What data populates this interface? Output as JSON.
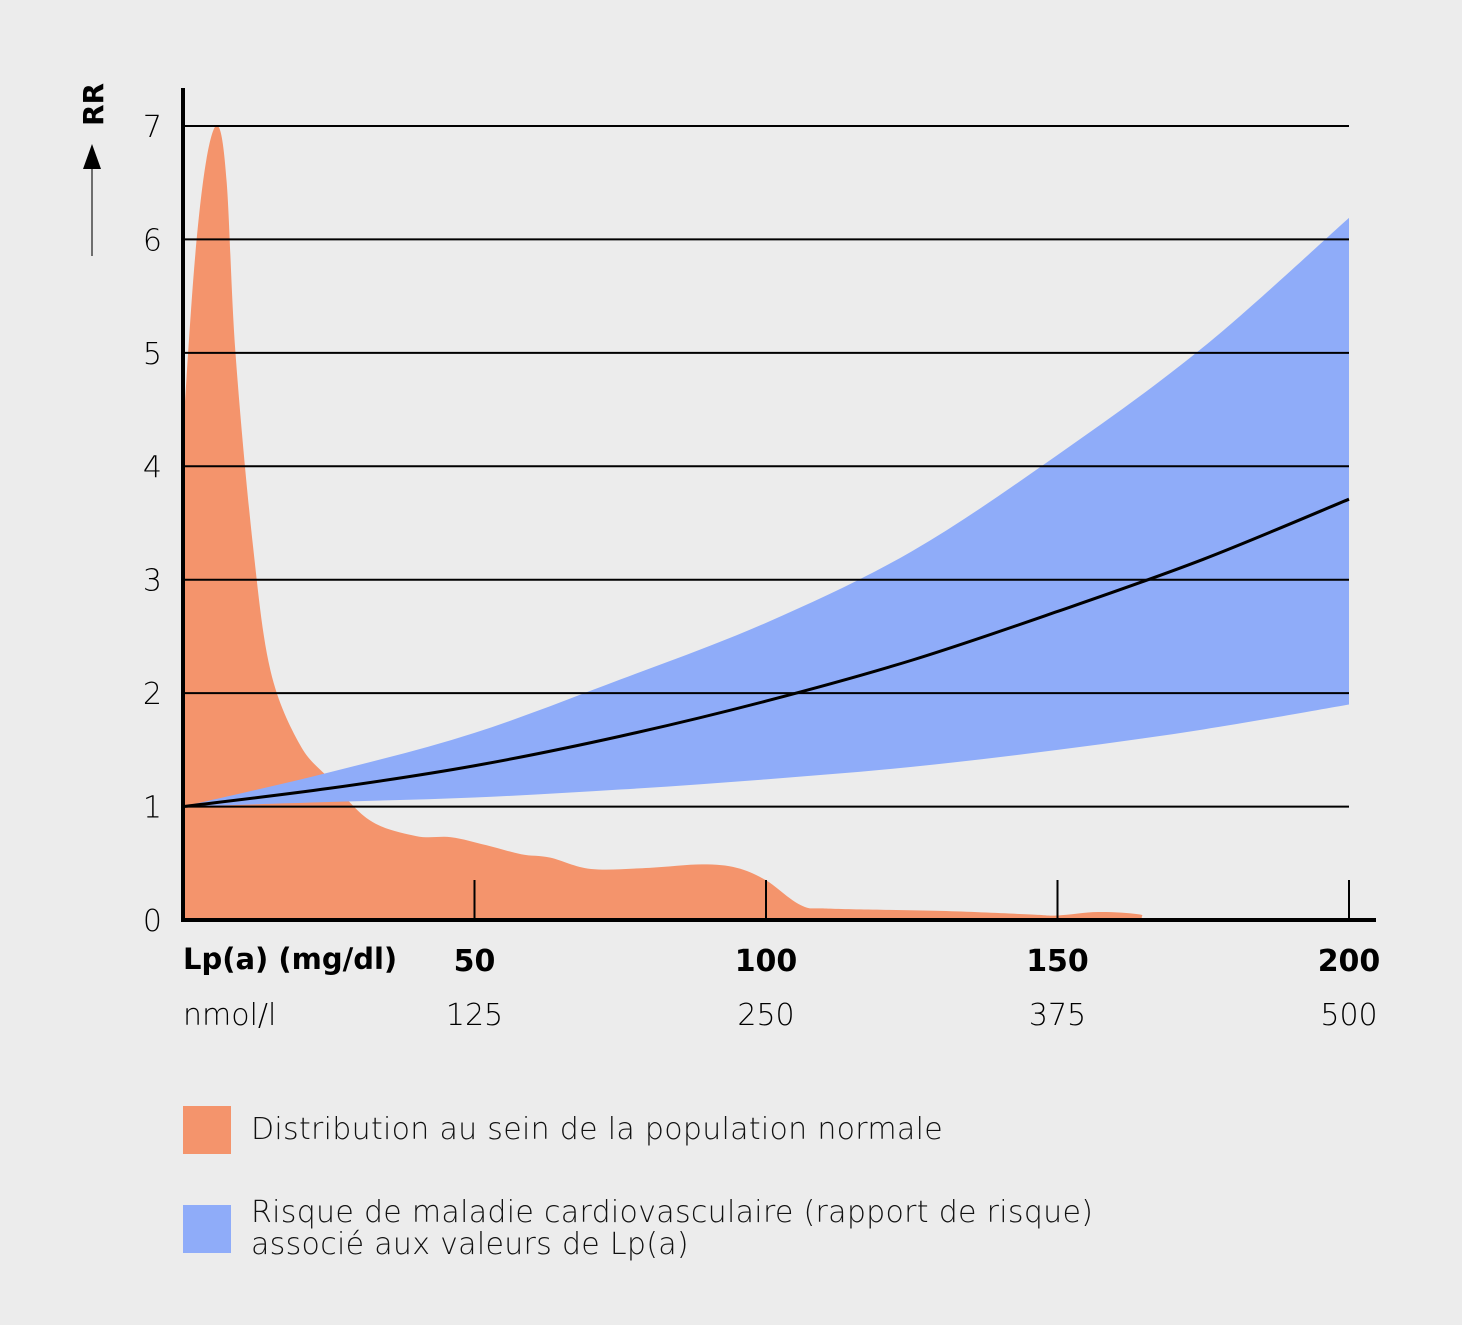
{
  "chart_data": {
    "type": "area",
    "xlabel": "Lp(a) (mg/dl)",
    "xlabel_secondary": "nmol/l",
    "ylabel": "RR",
    "xlim": [
      0,
      200
    ],
    "ylim": [
      0,
      7
    ],
    "x_ticks": [
      "50",
      "100",
      "150",
      "200"
    ],
    "x_ticks_values": [
      50,
      100,
      150,
      200
    ],
    "x_ticks_secondary": [
      "125",
      "250",
      "375",
      "500"
    ],
    "y_ticks": [
      "0",
      "1",
      "2",
      "3",
      "4",
      "5",
      "6",
      "7"
    ],
    "grid": "horizontal",
    "legend_placement": "bottom",
    "colors": {
      "distribution": "#F4946C",
      "risk": "#8FACF9",
      "line": "#000000",
      "background": "#ECECEC"
    },
    "series": [
      {
        "name": "Distribution au sein de la population normale",
        "kind": "area",
        "x": [
          0,
          2,
          4,
          6,
          7.5,
          9,
          12,
          15,
          20,
          25,
          32,
          40,
          46,
          52,
          58,
          63,
          70,
          80,
          89,
          95,
          100,
          106,
          111,
          130,
          145,
          150,
          157,
          164,
          168,
          200
        ],
        "y": [
          4.3,
          5.8,
          6.7,
          7.0,
          6.5,
          5.0,
          3.3,
          2.2,
          1.55,
          1.25,
          0.88,
          0.74,
          0.73,
          0.66,
          0.58,
          0.55,
          0.45,
          0.46,
          0.49,
          0.46,
          0.35,
          0.13,
          0.1,
          0.08,
          0.05,
          0.04,
          0.07,
          0.05,
          0.0,
          0.0
        ]
      },
      {
        "name": "Risque de maladie cardiovasculaire (rapport de risque) associé aux valeurs de Lp(a)",
        "kind": "band",
        "x": [
          0,
          25,
          50,
          75,
          100,
          125,
          150,
          175,
          200
        ],
        "upper": [
          1,
          1.3,
          1.65,
          2.12,
          2.62,
          3.25,
          4.1,
          5.05,
          6.19
        ],
        "lower": [
          1,
          1.04,
          1.08,
          1.15,
          1.24,
          1.35,
          1.5,
          1.68,
          1.9
        ],
        "center": [
          1,
          1.16,
          1.36,
          1.62,
          1.93,
          2.29,
          2.72,
          3.18,
          3.71
        ]
      }
    ]
  },
  "legend": [
    {
      "line1": "Distribution au sein de la population normale",
      "line2": ""
    },
    {
      "line1": "Risque de maladie cardiovasculaire (rapport de risque)",
      "line2": "associé aux valeurs de Lp(a)"
    }
  ]
}
